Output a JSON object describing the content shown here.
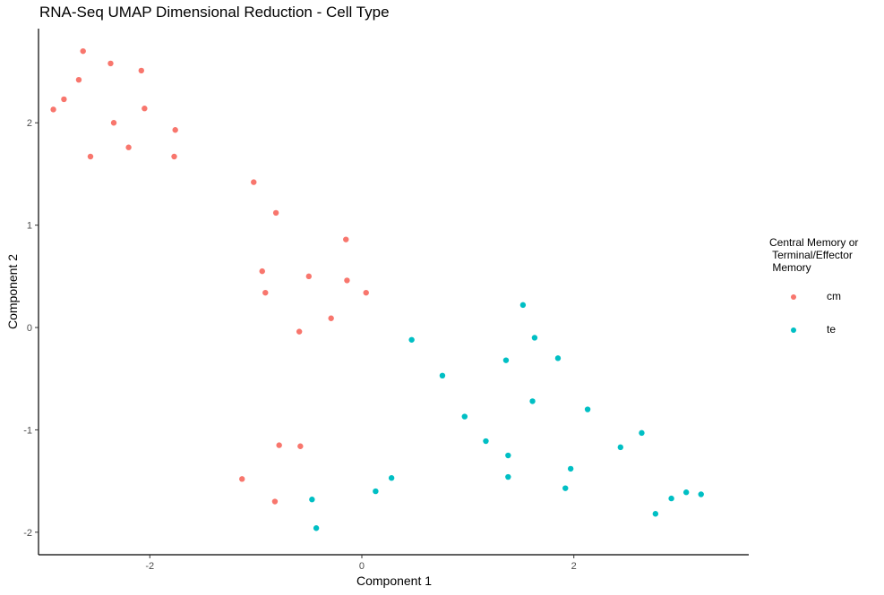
{
  "chart_data": {
    "type": "scatter",
    "title": "RNA-Seq UMAP Dimensional Reduction - Cell Type",
    "xlabel": "Component 1",
    "ylabel": "Component 2",
    "xlim": [
      -3.05,
      3.65
    ],
    "ylim": [
      -2.22,
      2.92
    ],
    "x_ticks": [
      -2,
      0,
      2
    ],
    "y_ticks": [
      -2,
      -1,
      0,
      1,
      2
    ],
    "grid": false,
    "legend": {
      "title": "Central Memory or\n Terminal/Effector\n Memory",
      "placement": "right",
      "entries": [
        "cm",
        "te"
      ]
    },
    "series": [
      {
        "name": "cm",
        "color": "#F8766D",
        "points": [
          {
            "x": -2.63,
            "y": 2.7
          },
          {
            "x": -2.37,
            "y": 2.58
          },
          {
            "x": -2.08,
            "y": 2.51
          },
          {
            "x": -2.67,
            "y": 2.42
          },
          {
            "x": -2.81,
            "y": 2.23
          },
          {
            "x": -2.91,
            "y": 2.13
          },
          {
            "x": -2.05,
            "y": 2.14
          },
          {
            "x": -2.34,
            "y": 2.0
          },
          {
            "x": -1.76,
            "y": 1.93
          },
          {
            "x": -2.2,
            "y": 1.76
          },
          {
            "x": -2.56,
            "y": 1.67
          },
          {
            "x": -1.77,
            "y": 1.67
          },
          {
            "x": -1.02,
            "y": 1.42
          },
          {
            "x": -0.81,
            "y": 1.12
          },
          {
            "x": -0.15,
            "y": 0.86
          },
          {
            "x": -0.94,
            "y": 0.55
          },
          {
            "x": -0.5,
            "y": 0.5
          },
          {
            "x": -0.14,
            "y": 0.46
          },
          {
            "x": -0.91,
            "y": 0.34
          },
          {
            "x": 0.04,
            "y": 0.34
          },
          {
            "x": -0.29,
            "y": 0.09
          },
          {
            "x": -0.59,
            "y": -0.04
          },
          {
            "x": -0.78,
            "y": -1.15
          },
          {
            "x": -0.58,
            "y": -1.16
          },
          {
            "x": -1.13,
            "y": -1.48
          },
          {
            "x": -0.82,
            "y": -1.7
          }
        ]
      },
      {
        "name": "te",
        "color": "#00BFC4",
        "points": [
          {
            "x": 1.52,
            "y": 0.22
          },
          {
            "x": 1.63,
            "y": -0.1
          },
          {
            "x": 0.47,
            "y": -0.12
          },
          {
            "x": 1.36,
            "y": -0.32
          },
          {
            "x": 1.85,
            "y": -0.3
          },
          {
            "x": 0.76,
            "y": -0.47
          },
          {
            "x": 1.61,
            "y": -0.72
          },
          {
            "x": 2.13,
            "y": -0.8
          },
          {
            "x": 0.97,
            "y": -0.87
          },
          {
            "x": 2.64,
            "y": -1.03
          },
          {
            "x": 1.17,
            "y": -1.11
          },
          {
            "x": 2.44,
            "y": -1.17
          },
          {
            "x": 1.38,
            "y": -1.25
          },
          {
            "x": 1.97,
            "y": -1.38
          },
          {
            "x": 1.38,
            "y": -1.46
          },
          {
            "x": 0.28,
            "y": -1.47
          },
          {
            "x": 1.92,
            "y": -1.57
          },
          {
            "x": 0.13,
            "y": -1.6
          },
          {
            "x": 3.06,
            "y": -1.61
          },
          {
            "x": 3.2,
            "y": -1.63
          },
          {
            "x": -0.47,
            "y": -1.68
          },
          {
            "x": 2.92,
            "y": -1.67
          },
          {
            "x": 2.77,
            "y": -1.82
          },
          {
            "x": -0.43,
            "y": -1.96
          }
        ]
      }
    ]
  }
}
